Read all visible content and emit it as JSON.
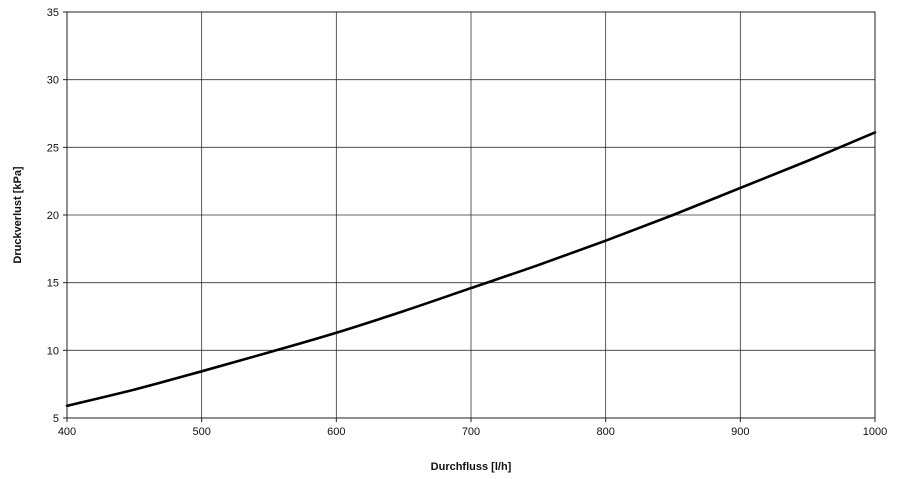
{
  "chart_data": {
    "type": "line",
    "title": "",
    "xlabel": "Durchfluss [l/h]",
    "ylabel": "Druckverlust [kPa]",
    "xlim": [
      400,
      1000
    ],
    "ylim": [
      5,
      35
    ],
    "xticks": [
      "400",
      "500",
      "600",
      "700",
      "800",
      "900",
      "1000"
    ],
    "yticks": [
      "5",
      "10",
      "15",
      "20",
      "25",
      "30",
      "35"
    ],
    "grid": true,
    "legend": "none",
    "series": [
      {
        "color": "#000000",
        "x": [
          400,
          450,
          500,
          550,
          600,
          650,
          700,
          750,
          800,
          850,
          900,
          950,
          1000
        ],
        "y": [
          5.9,
          7.1,
          8.45,
          9.85,
          11.3,
          12.9,
          14.6,
          16.3,
          18.1,
          20.0,
          22.0,
          24.0,
          26.1
        ]
      }
    ]
  }
}
